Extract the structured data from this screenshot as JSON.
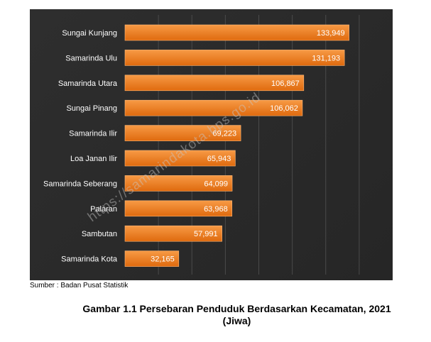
{
  "chart_data": {
    "type": "bar",
    "orientation": "horizontal",
    "categories": [
      "Sungai Kunjang",
      "Samarinda Ulu",
      "Samarinda Utara",
      "Sungai Pinang",
      "Samarinda Ilir",
      "Loa Janan Ilir",
      "Samarinda Seberang",
      "Palaran",
      "Sambutan",
      "Samarinda Kota"
    ],
    "values": [
      133949,
      131193,
      106867,
      106062,
      69223,
      65943,
      64099,
      63968,
      57991,
      32165
    ],
    "value_labels": [
      "133,949",
      "131,193",
      "106,867",
      "106,062",
      "69,223",
      "65,943",
      "64,099",
      "63,968",
      "57,991",
      "32,165"
    ],
    "xlim": [
      0,
      160000
    ],
    "grid": true,
    "legend": "none",
    "title": "",
    "xlabel": "",
    "ylabel": "",
    "colors": {
      "background": "#2a2a2a",
      "bar_top": "#f79a45",
      "bar_bottom": "#df6a0e",
      "bar_edge": "#ffb878",
      "label_text": "#ffffff",
      "gridline": "#4a4a4a"
    }
  },
  "source_note": "Sumber : Badan Pusat Statistik",
  "caption": {
    "line1": "Gambar 1.1 Persebaran Penduduk Berdasarkan Kecamatan, 2021",
    "line2": "(Jiwa)"
  },
  "watermark": "https://samarindakota.bps.go.id"
}
